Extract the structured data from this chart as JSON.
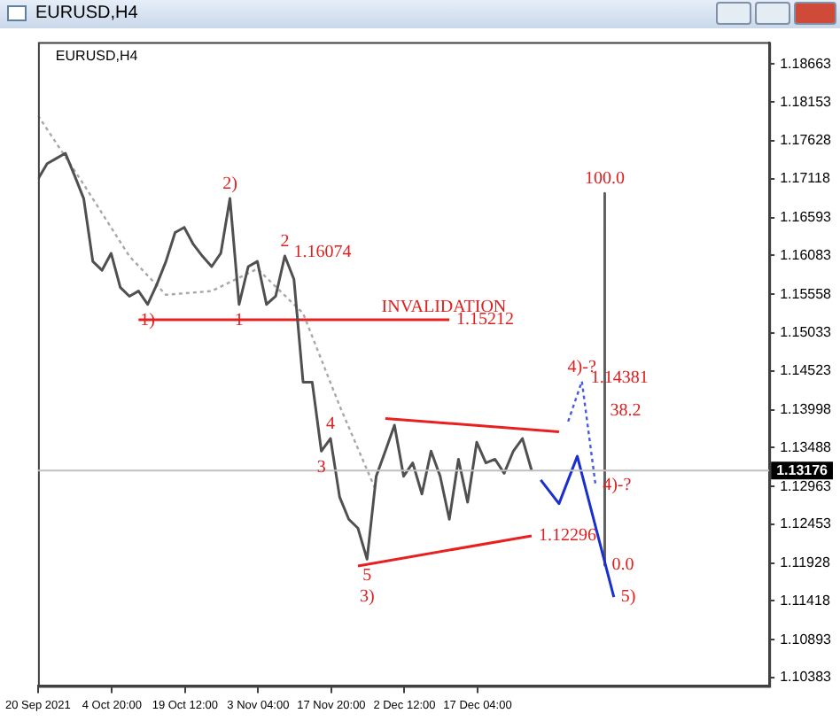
{
  "chart_data": {
    "type": "line",
    "title": "EURUSD,H4",
    "subtitle": "EURUSD,H4",
    "xlim": [
      "2021-09-20",
      "2022-02-13T16:00"
    ],
    "xticks": [
      {
        "value": "2021-09-20",
        "label": "20 Sep 2021"
      },
      {
        "value": "2021-10-04T20:00",
        "label": "4 Oct 20:00"
      },
      {
        "value": "2021-10-19T12:00",
        "label": "19 Oct 12:00"
      },
      {
        "value": "2021-11-03T04:00",
        "label": "3 Nov 04:00"
      },
      {
        "value": "2021-11-17T20:00",
        "label": "17 Nov 20:00"
      },
      {
        "value": "2021-12-02T12:00",
        "label": "2 Dec 12:00"
      },
      {
        "value": "2021-12-17T04:00",
        "label": "17 Dec 04:00"
      }
    ],
    "ylim": [
      1.1027,
      1.1896
    ],
    "yticks": [
      1.10383,
      1.10893,
      1.11418,
      1.11928,
      1.12453,
      1.12963,
      1.13488,
      1.13998,
      1.14523,
      1.15033,
      1.15558,
      1.16083,
      1.16593,
      1.17118,
      1.17628,
      1.18153,
      1.18663
    ],
    "grid": false,
    "legend": false,
    "marker": "none",
    "series": [
      {
        "color": "#505050",
        "x": [
          "2021-09-20",
          "2021-09-21T20:00",
          "2021-09-23T16:00",
          "2021-09-25T12:00",
          "2021-09-27T08:00",
          "2021-09-29T04:00",
          "2021-10-01",
          "2021-10-02T20:00",
          "2021-10-04T16:00",
          "2021-10-06T12:00",
          "2021-10-08T08:00",
          "2021-10-10T04:00",
          "2021-10-12",
          "2021-10-13T20:00",
          "2021-10-15T16:00",
          "2021-10-17T12:00",
          "2021-10-19T08:00",
          "2021-10-21T04:00",
          "2021-10-23",
          "2021-10-24T20:00",
          "2021-10-26T16:00",
          "2021-10-28T12:00",
          "2021-10-30T08:00",
          "2021-11-01T04:00",
          "2021-11-03",
          "2021-11-04T20:00",
          "2021-11-06T16:00",
          "2021-11-08T12:00",
          "2021-11-10T08:00",
          "2021-11-12T04:00",
          "2021-11-14",
          "2021-11-15T20:00",
          "2021-11-17T16:00",
          "2021-11-19T12:00",
          "2021-11-21T08:00",
          "2021-11-23T04:00",
          "2021-11-25",
          "2021-11-26T20:00",
          "2021-11-28T16:00",
          "2021-11-30T12:00",
          "2021-12-02T08:00",
          "2021-12-04T04:00",
          "2021-12-06",
          "2021-12-07T20:00",
          "2021-12-09T16:00",
          "2021-12-11T12:00",
          "2021-12-13T08:00",
          "2021-12-15T04:00",
          "2021-12-17",
          "2021-12-18T20:00",
          "2021-12-20T16:00",
          "2021-12-22T12:00",
          "2021-12-24T08:00",
          "2021-12-26T04:00",
          "2021-12-28"
        ],
        "values": [
          1.1711,
          1.1732,
          1.1739,
          1.1746,
          1.1716,
          1.1685,
          1.16,
          1.1588,
          1.1611,
          1.1565,
          1.1553,
          1.156,
          1.1542,
          1.1569,
          1.16,
          1.1639,
          1.1646,
          1.1623,
          1.1607,
          1.1593,
          1.1611,
          1.1685,
          1.1542,
          1.1593,
          1.16,
          1.1542,
          1.1553,
          1.16074,
          1.1576,
          1.1437,
          1.1437,
          1.1344,
          1.1361,
          1.1282,
          1.1252,
          1.124,
          1.1198,
          1.131,
          1.1344,
          1.1379,
          1.131,
          1.1328,
          1.1286,
          1.1344,
          1.131,
          1.1252,
          1.1333,
          1.1275,
          1.1356,
          1.1328,
          1.1333,
          1.1314,
          1.1344,
          1.1361,
          1.1318
        ]
      },
      {
        "color": "#a8a8a8",
        "line_style": "dotted",
        "x": [
          "2021-09-20",
          "2021-09-29T04:00",
          "2021-10-08T08:00",
          "2021-10-15T16:00",
          "2021-10-24T20:00",
          "2021-11-03",
          "2021-11-12T04:00",
          "2021-11-19T12:00",
          "2021-11-26T20:00"
        ],
        "values": [
          1.1797,
          1.1704,
          1.1607,
          1.1555,
          1.156,
          1.159,
          1.153,
          1.1405,
          1.129
        ]
      },
      {
        "color": "#e82020",
        "x": [
          "2021-11-28T16:00",
          "2022-01-02T12:00"
        ],
        "values": [
          1.1388,
          1.137
        ]
      },
      {
        "color": "#e82020",
        "x": [
          "2021-11-23T04:00",
          "2021-12-28"
        ],
        "values": [
          1.1189,
          1.12296
        ]
      },
      {
        "color": "#e82020",
        "x": [
          "2021-10-10T04:00",
          "2021-11-26T20:00",
          "2021-12-11T12:00"
        ],
        "values": [
          1.15212,
          1.15212,
          1.15212
        ]
      },
      {
        "color": "#1a2fd0",
        "x": [
          "2021-12-29T20:00",
          "2022-01-02T12:00",
          "2022-01-06T04:00",
          "2022-01-13T12:00"
        ],
        "values": [
          1.1305,
          1.1273,
          1.1337,
          1.1147
        ]
      },
      {
        "color": "#4a5ae0",
        "line_style": "dotted",
        "x": [
          "2022-01-04T08:00",
          "2022-01-07T02:00",
          "2022-01-09T20:00"
        ],
        "values": [
          1.1384,
          1.14381,
          1.1298
        ]
      },
      {
        "color": "#606060",
        "x": [
          "2022-01-11T16:00",
          "2022-01-11T16:00",
          "2022-01-11T16:00"
        ],
        "values": [
          1.1692,
          1.1382,
          1.119
        ]
      }
    ],
    "ref_lines": [
      {
        "axis": "y",
        "value": 1.13176,
        "label": "1.13176",
        "color": "#c0c0c0"
      }
    ],
    "annotations": [
      {
        "text": "1)",
        "x": "2021-10-12",
        "y": 1.1542
      },
      {
        "text": "2)",
        "x": "2021-10-28T12:00",
        "y": 1.1685
      },
      {
        "text": "1",
        "x": "2021-10-30T08:00",
        "y": 1.1542
      },
      {
        "text": "2",
        "x": "2021-11-08T12:00",
        "y": 1.16074
      },
      {
        "text": "1.16074",
        "x": "2021-11-08T12:00",
        "y": 1.16074
      },
      {
        "text": "3",
        "x": "2021-11-15T20:00",
        "y": 1.1344
      },
      {
        "text": "4",
        "x": "2021-11-17T16:00",
        "y": 1.1361
      },
      {
        "text": "5",
        "x": "2021-11-25",
        "y": 1.1198
      },
      {
        "text": "3)",
        "x": "2021-11-25",
        "y": 1.1198
      },
      {
        "text": "INVALIDATION",
        "x": "2021-11-26T20:00",
        "y": 1.15212
      },
      {
        "text": "1.15212",
        "x": "2021-12-11T12:00",
        "y": 1.15212
      },
      {
        "text": "1.12296",
        "x": "2021-12-28",
        "y": 1.12296
      },
      {
        "text": "4)-?",
        "x": "2022-01-07T02:00",
        "y": 1.14381
      },
      {
        "text": "1.14381",
        "x": "2022-01-07T02:00",
        "y": 1.14381
      },
      {
        "text": "4)-?",
        "x": "2022-01-09T20:00",
        "y": 1.1298
      },
      {
        "text": "5)",
        "x": "2022-01-13T12:00",
        "y": 1.1147
      },
      {
        "text": "100.0",
        "x": "2022-01-11T16:00",
        "y": 1.1692
      },
      {
        "text": "38.2",
        "x": "2022-01-11T16:00",
        "y": 1.1382
      },
      {
        "text": "0.0",
        "x": "2022-01-11T16:00",
        "y": 1.119
      }
    ]
  }
}
